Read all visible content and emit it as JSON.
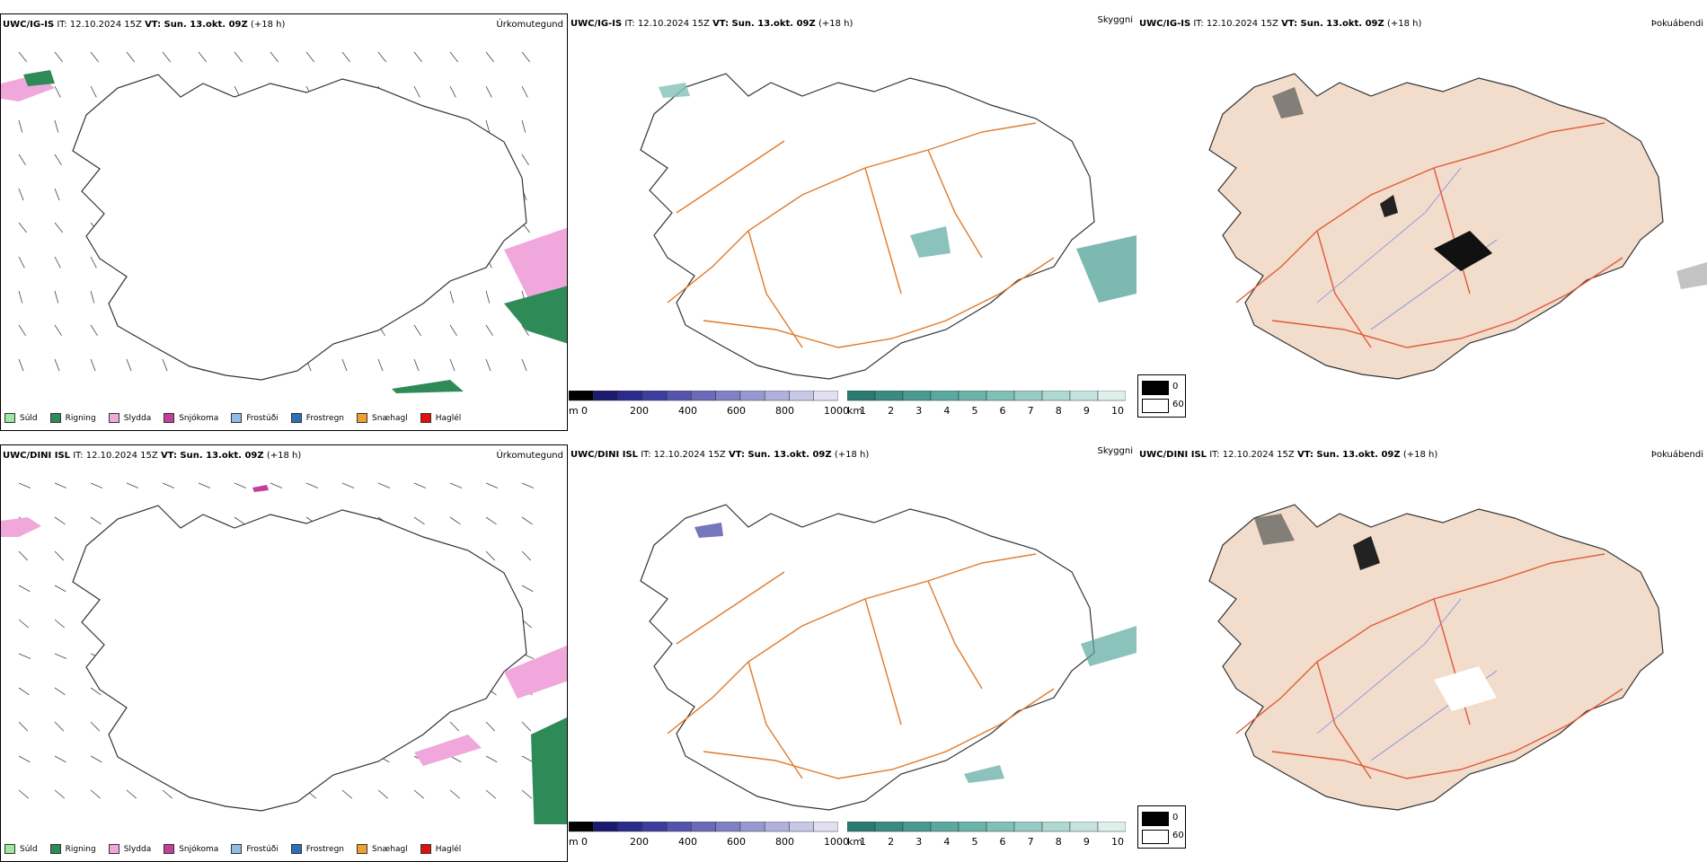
{
  "rows": [
    {
      "model": "UWC/IG-IS",
      "issue": "IT: 12.10.2024 15Z",
      "valid": "VT: Sun. 13.okt. 09Z",
      "lead": "(+18 h)"
    },
    {
      "model": "UWC/DINI ISL",
      "issue": "IT: 12.10.2024 15Z",
      "valid": "VT: Sun. 13.okt. 09Z",
      "lead": "(+18 h)"
    }
  ],
  "panels": {
    "precip_label": "Úrkomutegund",
    "vis_label": "Skyggni",
    "fog_label": "Þokuábendi"
  },
  "precip_legend": [
    {
      "label": "Súld",
      "color": "#9ee89e"
    },
    {
      "label": "Rigning",
      "color": "#2e8b57"
    },
    {
      "label": "Slydda",
      "color": "#f0a8dc"
    },
    {
      "label": "Snjókoma",
      "color": "#c0409a"
    },
    {
      "label": "Frostúði",
      "color": "#8fbde8"
    },
    {
      "label": "Frostregn",
      "color": "#2e6fb8"
    },
    {
      "label": "Snæhagl",
      "color": "#f0a030"
    },
    {
      "label": "Haglél",
      "color": "#e01010"
    }
  ],
  "cloud_base_bar": {
    "unit": "m",
    "ticks": [
      "0",
      "200",
      "400",
      "600",
      "800",
      "1000"
    ],
    "colors": [
      "#000000",
      "#1a1a6e",
      "#2b2b8c",
      "#3d3d9e",
      "#5454ac",
      "#6a6ab8",
      "#8080c4",
      "#9898d0",
      "#b0b0dc",
      "#c8c8e6",
      "#e0e0f0"
    ]
  },
  "visibility_bar": {
    "unit": "km",
    "ticks": [
      "1",
      "2",
      "3",
      "4",
      "5",
      "6",
      "7",
      "8",
      "9",
      "10"
    ],
    "colors": [
      "#2a7a70",
      "#3a8a80",
      "#4a9a90",
      "#5aa89e",
      "#6cb4aa",
      "#80c0b6",
      "#96ccc4",
      "#aed8d0",
      "#c6e4de",
      "#def0ec"
    ]
  },
  "fog_legend": [
    "0",
    "60"
  ]
}
